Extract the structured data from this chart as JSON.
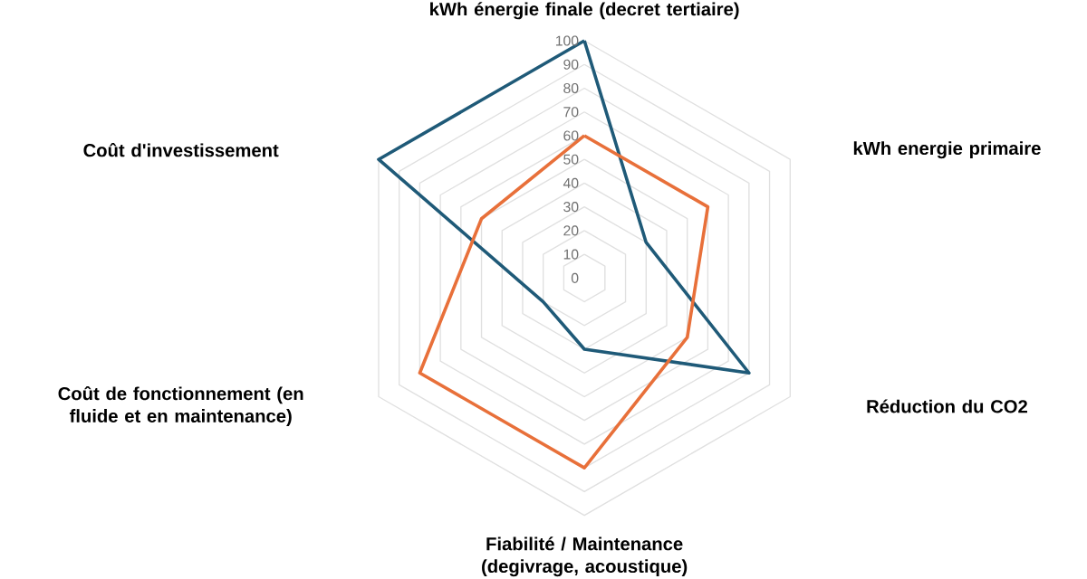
{
  "chart_data": {
    "type": "radar",
    "categories": [
      "kWh énergie finale (decret tertiaire)",
      "kWh energie primaire",
      "Réduction du CO2",
      "Fiabilité / Maintenance (degivrage, acoustique)",
      "Coût de fonctionnement (en fluide et en maintenance)",
      "Coût d'investissement"
    ],
    "series": [
      {
        "color": "#1f5a78",
        "values": [
          100,
          30,
          80,
          30,
          20,
          100
        ]
      },
      {
        "color": "#e8703a",
        "values": [
          60,
          60,
          50,
          80,
          80,
          50
        ]
      }
    ],
    "ylim": [
      0,
      100
    ],
    "yticks": [
      0,
      10,
      20,
      30,
      40,
      50,
      60,
      70,
      80,
      90,
      100
    ],
    "grid": true,
    "marker": "none",
    "line_style": "solid"
  }
}
